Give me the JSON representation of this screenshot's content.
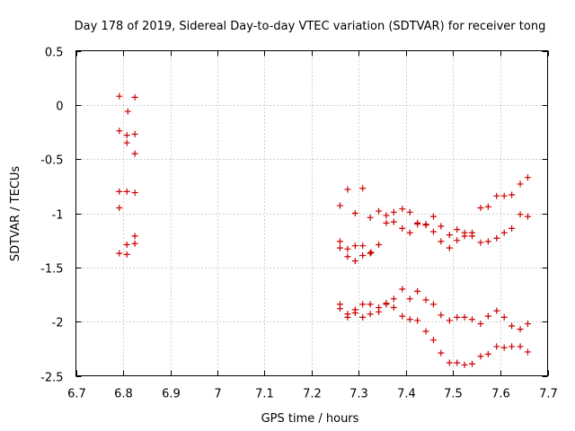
{
  "chart_data": {
    "type": "scatter",
    "title": "Day 178 of 2019, Sidereal Day-to-day VTEC variation (SDTVAR) for receiver tong",
    "xlabel": "GPS time / hours",
    "ylabel": "SDTVAR / TECUs",
    "xlim": [
      6.7,
      7.7
    ],
    "ylim": [
      -2.5,
      0.5
    ],
    "xticks": [
      6.7,
      6.8,
      6.9,
      7.0,
      7.1,
      7.2,
      7.3,
      7.4,
      7.5,
      7.6,
      7.7
    ],
    "xtick_labels": [
      "6.7",
      "6.8",
      "6.9",
      "7",
      "7.1",
      "7.2",
      "7.3",
      "7.4",
      "7.5",
      "7.6",
      "7.7"
    ],
    "yticks": [
      0.5,
      0,
      -0.5,
      -1,
      -1.5,
      -2,
      -2.5
    ],
    "ytick_labels": [
      "0.5",
      "0",
      "-0.5",
      "-1",
      "-1.5",
      "-2",
      "-2.5"
    ],
    "grid": true,
    "marker": "+",
    "color": "#cc0000",
    "series": [
      {
        "name": "SDTVAR",
        "points": [
          [
            6.792,
            0.08
          ],
          [
            6.825,
            0.07
          ],
          [
            6.81,
            -0.06
          ],
          [
            6.792,
            -0.24
          ],
          [
            6.808,
            -0.28
          ],
          [
            6.825,
            -0.27
          ],
          [
            6.808,
            -0.35
          ],
          [
            6.825,
            -0.45
          ],
          [
            6.792,
            -0.8
          ],
          [
            6.808,
            -0.8
          ],
          [
            6.825,
            -0.81
          ],
          [
            6.792,
            -0.95
          ],
          [
            6.825,
            -1.21
          ],
          [
            6.808,
            -1.29
          ],
          [
            6.825,
            -1.28
          ],
          [
            6.792,
            -1.37
          ],
          [
            6.808,
            -1.38
          ],
          [
            7.26,
            -0.93
          ],
          [
            7.276,
            -0.78
          ],
          [
            7.292,
            -1.0
          ],
          [
            7.308,
            -0.77
          ],
          [
            7.324,
            -1.04
          ],
          [
            7.342,
            -0.98
          ],
          [
            7.358,
            -1.02
          ],
          [
            7.374,
            -0.99
          ],
          [
            7.392,
            -0.96
          ],
          [
            7.408,
            -0.99
          ],
          [
            7.424,
            -1.1
          ],
          [
            7.442,
            -1.1
          ],
          [
            7.458,
            -1.03
          ],
          [
            7.474,
            -1.12
          ],
          [
            7.492,
            -1.2
          ],
          [
            7.508,
            -1.15
          ],
          [
            7.524,
            -1.18
          ],
          [
            7.54,
            -1.18
          ],
          [
            7.558,
            -0.95
          ],
          [
            7.574,
            -0.94
          ],
          [
            7.592,
            -0.84
          ],
          [
            7.608,
            -0.84
          ],
          [
            7.624,
            -0.83
          ],
          [
            7.642,
            -0.73
          ],
          [
            7.658,
            -0.67
          ],
          [
            7.642,
            -1.01
          ],
          [
            7.658,
            -1.03
          ],
          [
            7.624,
            -1.14
          ],
          [
            7.608,
            -1.18
          ],
          [
            7.592,
            -1.23
          ],
          [
            7.574,
            -1.26
          ],
          [
            7.558,
            -1.27
          ],
          [
            7.54,
            -1.21
          ],
          [
            7.524,
            -1.21
          ],
          [
            7.508,
            -1.25
          ],
          [
            7.492,
            -1.32
          ],
          [
            7.474,
            -1.26
          ],
          [
            7.458,
            -1.17
          ],
          [
            7.442,
            -1.11
          ],
          [
            7.424,
            -1.09
          ],
          [
            7.408,
            -1.18
          ],
          [
            7.392,
            -1.14
          ],
          [
            7.374,
            -1.08
          ],
          [
            7.358,
            -1.09
          ],
          [
            7.342,
            -1.29
          ],
          [
            7.324,
            -1.37
          ],
          [
            7.326,
            -1.36
          ],
          [
            7.308,
            -1.3
          ],
          [
            7.292,
            -1.3
          ],
          [
            7.276,
            -1.33
          ],
          [
            7.26,
            -1.26
          ],
          [
            7.26,
            -1.32
          ],
          [
            7.276,
            -1.4
          ],
          [
            7.292,
            -1.44
          ],
          [
            7.308,
            -1.39
          ],
          [
            7.26,
            -1.84
          ],
          [
            7.26,
            -1.88
          ],
          [
            7.276,
            -1.93
          ],
          [
            7.276,
            -1.96
          ],
          [
            7.292,
            -1.92
          ],
          [
            7.292,
            -1.89
          ],
          [
            7.308,
            -1.96
          ],
          [
            7.308,
            -1.84
          ],
          [
            7.324,
            -1.93
          ],
          [
            7.324,
            -1.84
          ],
          [
            7.342,
            -1.91
          ],
          [
            7.342,
            -1.87
          ],
          [
            7.358,
            -1.83
          ],
          [
            7.358,
            -1.84
          ],
          [
            7.374,
            -1.87
          ],
          [
            7.374,
            -1.79
          ],
          [
            7.392,
            -1.95
          ],
          [
            7.392,
            -1.7
          ],
          [
            7.408,
            -1.98
          ],
          [
            7.408,
            -1.79
          ],
          [
            7.424,
            -1.99
          ],
          [
            7.424,
            -1.72
          ],
          [
            7.442,
            -2.09
          ],
          [
            7.442,
            -1.8
          ],
          [
            7.458,
            -2.17
          ],
          [
            7.458,
            -1.84
          ],
          [
            7.474,
            -2.29
          ],
          [
            7.474,
            -1.94
          ],
          [
            7.492,
            -2.38
          ],
          [
            7.492,
            -1.99
          ],
          [
            7.508,
            -2.38
          ],
          [
            7.508,
            -1.96
          ],
          [
            7.524,
            -2.4
          ],
          [
            7.524,
            -1.96
          ],
          [
            7.54,
            -2.39
          ],
          [
            7.54,
            -1.98
          ],
          [
            7.558,
            -2.32
          ],
          [
            7.558,
            -2.02
          ],
          [
            7.574,
            -2.3
          ],
          [
            7.574,
            -1.95
          ],
          [
            7.592,
            -2.23
          ],
          [
            7.592,
            -1.9
          ],
          [
            7.608,
            -2.24
          ],
          [
            7.608,
            -1.96
          ],
          [
            7.624,
            -2.23
          ],
          [
            7.624,
            -2.04
          ],
          [
            7.642,
            -2.23
          ],
          [
            7.642,
            -2.07
          ],
          [
            7.658,
            -2.28
          ],
          [
            7.658,
            -2.02
          ]
        ]
      }
    ]
  }
}
